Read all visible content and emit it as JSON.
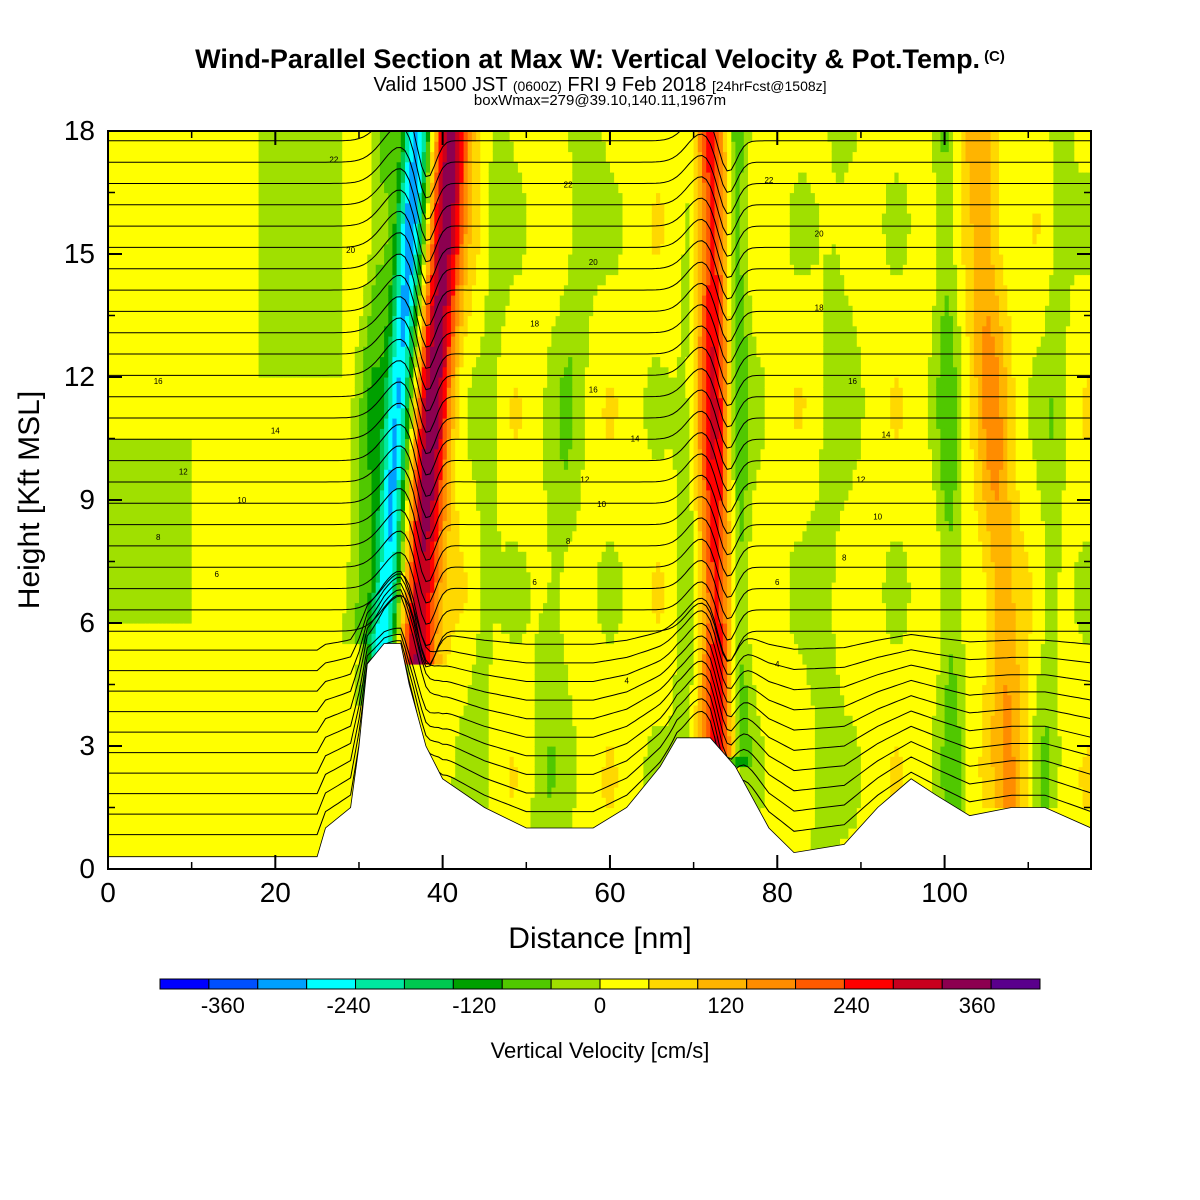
{
  "chart_data": {
    "type": "heatmap",
    "title": "Wind-Parallel Section at Max W: Vertical Velocity & Pot.Temp.",
    "title_mark": "(C)",
    "subtitle": {
      "main": "Valid 1500 JST",
      "zulu": "(0600Z)",
      "date": "FRI 9 Feb 2018",
      "forecast": "[24hrFcst@1508z]"
    },
    "subtitle2": "boxWmax=279@39.10,140.11,1967m",
    "xlabel": "Distance [nm]",
    "ylabel": "Height [Kft MSL]",
    "xlim": [
      0,
      117.5
    ],
    "ylim": [
      0,
      18
    ],
    "x_ticks": [
      "0",
      "20",
      "40",
      "60",
      "80",
      "100"
    ],
    "y_ticks": [
      "0",
      "3",
      "6",
      "9",
      "12",
      "15",
      "18"
    ],
    "colorbar": {
      "label": "Vertical Velocity [cm/s]",
      "ticks": [
        "-360",
        "-240",
        "-120",
        "0",
        "120",
        "240",
        "360"
      ],
      "range": [
        -420,
        420
      ],
      "colors": [
        "#0000ff",
        "#0050ff",
        "#00a0ff",
        "#00ffff",
        "#00e8a0",
        "#00c850",
        "#00a000",
        "#50c800",
        "#a0e000",
        "#ffff00",
        "#ffd800",
        "#ffb400",
        "#ff8c00",
        "#ff5a00",
        "#ff0000",
        "#c8001e",
        "#8c0050",
        "#5a008c"
      ]
    },
    "terrain_kft": [
      [
        0,
        0.3
      ],
      [
        25,
        0.3
      ],
      [
        26,
        1
      ],
      [
        29,
        1.5
      ],
      [
        30,
        3
      ],
      [
        31,
        5
      ],
      [
        33,
        5.5
      ],
      [
        35,
        5.5
      ],
      [
        36,
        4.5
      ],
      [
        38,
        3
      ],
      [
        40,
        2.2
      ],
      [
        45,
        1.5
      ],
      [
        50,
        1
      ],
      [
        55,
        1
      ],
      [
        58,
        1
      ],
      [
        62,
        1.5
      ],
      [
        66,
        2.5
      ],
      [
        68,
        3.2
      ],
      [
        72,
        3.2
      ],
      [
        75,
        2.5
      ],
      [
        79,
        1
      ],
      [
        82,
        0.4
      ],
      [
        88,
        0.6
      ],
      [
        92,
        1.5
      ],
      [
        96,
        2.2
      ],
      [
        99,
        1.8
      ],
      [
        103,
        1.3
      ],
      [
        108,
        1.5
      ],
      [
        112,
        1.5
      ],
      [
        117.5,
        1
      ]
    ],
    "theta_contour_labels": [
      {
        "x": 27,
        "y": 17.3,
        "value": "22"
      },
      {
        "x": 55,
        "y": 16.7,
        "value": "22"
      },
      {
        "x": 79,
        "y": 16.8,
        "value": "22"
      },
      {
        "x": 29,
        "y": 15.1,
        "value": "20"
      },
      {
        "x": 58,
        "y": 14.8,
        "value": "20"
      },
      {
        "x": 85,
        "y": 15.5,
        "value": "20"
      },
      {
        "x": 51,
        "y": 13.3,
        "value": "18"
      },
      {
        "x": 85,
        "y": 13.7,
        "value": "18"
      },
      {
        "x": 6,
        "y": 11.9,
        "value": "16"
      },
      {
        "x": 58,
        "y": 11.7,
        "value": "16"
      },
      {
        "x": 89,
        "y": 11.9,
        "value": "16"
      },
      {
        "x": 20,
        "y": 10.7,
        "value": "14"
      },
      {
        "x": 63,
        "y": 10.5,
        "value": "14"
      },
      {
        "x": 93,
        "y": 10.6,
        "value": "14"
      },
      {
        "x": 9,
        "y": 9.7,
        "value": "12"
      },
      {
        "x": 57,
        "y": 9.5,
        "value": "12"
      },
      {
        "x": 90,
        "y": 9.5,
        "value": "12"
      },
      {
        "x": 16,
        "y": 9.0,
        "value": "10"
      },
      {
        "x": 59,
        "y": 8.9,
        "value": "10"
      },
      {
        "x": 92,
        "y": 8.6,
        "value": "10"
      },
      {
        "x": 6,
        "y": 8.1,
        "value": "8"
      },
      {
        "x": 55,
        "y": 8.0,
        "value": "8"
      },
      {
        "x": 88,
        "y": 7.6,
        "value": "8"
      },
      {
        "x": 13,
        "y": 7.2,
        "value": "6"
      },
      {
        "x": 51,
        "y": 7.0,
        "value": "6"
      },
      {
        "x": 80,
        "y": 7.0,
        "value": "6"
      },
      {
        "x": 62,
        "y": 4.6,
        "value": "4"
      },
      {
        "x": 80,
        "y": 5.0,
        "value": "4"
      }
    ],
    "bands": [
      {
        "x_base": 32.5,
        "x_top": 37,
        "y_from": 4.5,
        "width": 2.6,
        "peak_cm_s": -320
      },
      {
        "x_base": 37,
        "x_top": 41,
        "y_from": 5.5,
        "width": 3.2,
        "peak_cm_s": 330
      },
      {
        "x_base": 30,
        "x_top": 33,
        "y_from": 6,
        "width": 2.0,
        "peak_cm_s": -80
      },
      {
        "x_base": 73,
        "x_top": 72,
        "y_from": 3.2,
        "width": 3.0,
        "peak_cm_s": 250
      },
      {
        "x_base": 75.5,
        "x_top": 75,
        "y_from": 3.0,
        "width": 2.0,
        "peak_cm_s": -120
      },
      {
        "x_base": 69,
        "x_top": 70,
        "y_from": 3.2,
        "width": 2.0,
        "peak_cm_s": -60
      },
      {
        "x_base": 108,
        "x_top": 104,
        "y_from": 2,
        "width": 3.0,
        "peak_cm_s": 120
      },
      {
        "x_base": 101,
        "x_top": 100,
        "y_from": 1.5,
        "width": 2.0,
        "peak_cm_s": -80
      },
      {
        "x_base": 112,
        "x_top": 114,
        "y_from": 2,
        "width": 2.0,
        "peak_cm_s": -50
      },
      {
        "x_base": 52,
        "x_top": 57,
        "y_from": 1,
        "width": 3.0,
        "peak_cm_s": -50
      },
      {
        "x_base": 44,
        "x_top": 47,
        "y_from": 2,
        "width": 2.0,
        "peak_cm_s": -40
      },
      {
        "x_base": 85,
        "x_top": 88,
        "y_from": 1,
        "width": 3.0,
        "peak_cm_s": -40
      }
    ]
  }
}
